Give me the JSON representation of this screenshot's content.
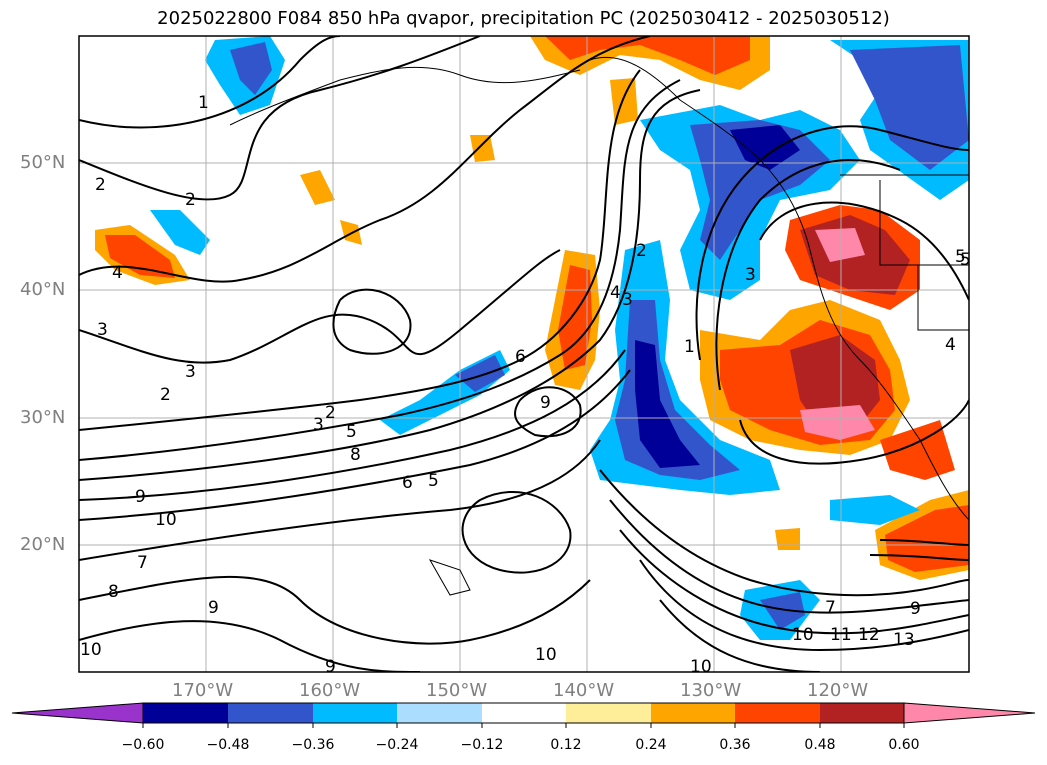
{
  "title": "2025022800 F084 850 hPa qvapor, precipitation PC (2025030412 - 2025030512)",
  "lat_labels": [
    "50°N",
    "40°N",
    "30°N",
    "20°N"
  ],
  "lon_labels": [
    "170°W",
    "160°W",
    "150°W",
    "140°W",
    "130°W",
    "120°W"
  ],
  "colorbar": {
    "ticks": [
      "−0.60",
      "−0.48",
      "−0.36",
      "−0.24",
      "−0.12",
      "0.12",
      "0.24",
      "0.36",
      "0.48",
      "0.60"
    ],
    "colors": [
      "#9933cc",
      "#000099",
      "#3355cc",
      "#00bbff",
      "#aaddff",
      "#ffffff",
      "#ffee99",
      "#ffa500",
      "#ff4400",
      "#b22222",
      "#ff88aa"
    ]
  },
  "contour_labels": [
    "1",
    "2",
    "2",
    "4",
    "5",
    "3",
    "2",
    "3",
    "2",
    "3",
    "5",
    "8",
    "9",
    "10",
    "7",
    "8",
    "9",
    "10",
    "9",
    "6",
    "9",
    "6",
    "5",
    "4",
    "3",
    "2",
    "1",
    "3",
    "5",
    "4",
    "7",
    "9",
    "10",
    "11",
    "12",
    "13",
    "10",
    "10"
  ]
}
